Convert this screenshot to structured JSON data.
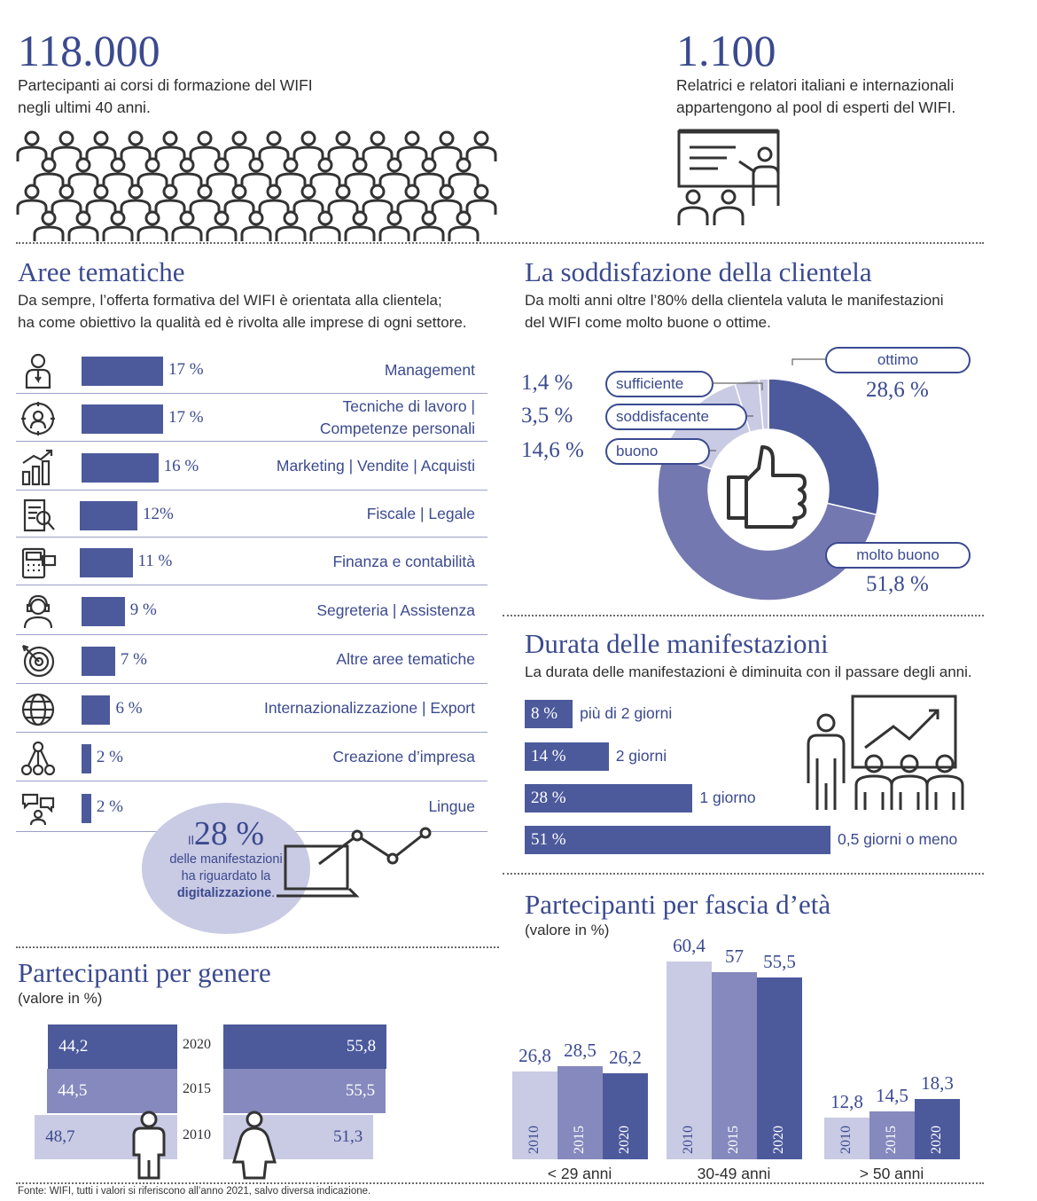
{
  "stats": {
    "participants": {
      "number": "118.000",
      "text1": "Partecipanti ai corsi di formazione del WIFI",
      "text2": "negli ultimi 40 anni."
    },
    "experts": {
      "number": "1.100",
      "text1": "Relatrici e relatori italiani e internazionali",
      "text2": "appartengono al pool di esperti del WIFI."
    }
  },
  "areas": {
    "title": "Aree tematiche",
    "sub1": "Da sempre, l’offerta formativa del WIFI è orientata alla clientela;",
    "sub2": "ha come obiettivo la qualità ed è rivolta alle imprese di ogni settore.",
    "icons": [
      "manager-icon",
      "head-gear-icon",
      "growth-chart-icon",
      "document-magnifier-icon",
      "calculator-card-icon",
      "headset-icon",
      "target-icon",
      "globe-icon",
      "network-icon",
      "speech-bubbles-icon"
    ]
  },
  "digital": {
    "prefix": "Il",
    "pct": "28 %",
    "line1": "delle manifestazioni",
    "line2": "ha riguardato la",
    "strong": "digitalizzazione",
    "suffix": "."
  },
  "satisfaction": {
    "title": "La soddisfazione della clientela",
    "sub1": "Da molti anni oltre l’80% della clientela valuta le manifestazioni",
    "sub2": "del WIFI come molto buone o ottime."
  },
  "duration": {
    "title": "Durata delle manifestazioni",
    "sub": "La durata delle manifestazioni è diminuita con il passare degli anni."
  },
  "gender": {
    "title": "Partecipanti per genere",
    "unit": "(valore in %)"
  },
  "age": {
    "title": "Partecipanti per fascia d’età",
    "unit": "(valore in %)"
  },
  "footer": "Fonte: WIFI, tutti i valori si riferiscono all’anno 2021, salvo diversa indicazione.",
  "colors": {
    "navy": "#3b4a8f",
    "bar": "#4c5a9c",
    "mid": "#8589bd",
    "light": "#c9cae3"
  },
  "chart_data": [
    {
      "type": "bar",
      "orientation": "horizontal",
      "categories": [
        "Management",
        "Tecniche di lavoro | Competenze personali",
        "Marketing | Vendite | Acquisti",
        "Fiscale | Legale",
        "Finanza e contabilità",
        "Segreteria | Assistenza",
        "Altre aree tematiche",
        "Internazionalizzazione | Export",
        "Creazione d’impresa",
        "Lingue"
      ],
      "label_lines": [
        [
          "Management"
        ],
        [
          "Tecniche di lavoro |",
          "Competenze personali"
        ],
        [
          "Marketing | Vendite | Acquisti"
        ],
        [
          "Fiscale | Legale"
        ],
        [
          "Finanza e contabilità"
        ],
        [
          "Segreteria | Assistenza"
        ],
        [
          "Altre aree tematiche"
        ],
        [
          "Internazionalizzazione | Export"
        ],
        [
          "Creazione d’impresa"
        ],
        [
          "Lingue"
        ]
      ],
      "values": [
        17,
        17,
        16,
        12,
        11,
        9,
        7,
        6,
        2,
        2
      ],
      "value_labels": [
        "17 %",
        "17 %",
        "16 %",
        "12%",
        "11 %",
        "9 %",
        "7 %",
        "6 %",
        "2 %",
        "2 %"
      ]
    },
    {
      "type": "pie",
      "donut": true,
      "categories": [
        "ottimo",
        "molto buono",
        "buono",
        "soddisfacente",
        "sufficiente"
      ],
      "values": [
        28.6,
        51.8,
        14.6,
        3.5,
        1.4
      ],
      "value_labels": [
        "28,6 %",
        "51,8 %",
        "14,6 %",
        "3,5 %",
        "1,4 %"
      ],
      "colors": [
        "#4c5a9c",
        "#7378b0",
        "#c9cae3",
        "#c9cae3",
        "#c9cae3"
      ]
    },
    {
      "type": "bar",
      "orientation": "horizontal",
      "categories": [
        "più di 2 giorni",
        "2 giorni",
        "1 giorno",
        "0,5 giorni o meno"
      ],
      "values": [
        8,
        14,
        28,
        51
      ],
      "value_labels": [
        "8 %",
        "14 %",
        "28 %",
        "51 %"
      ]
    },
    {
      "type": "bar",
      "orientation": "horizontal",
      "stacked": "diverging",
      "categories": [
        "2020",
        "2015",
        "2010"
      ],
      "series": [
        {
          "values": [
            44.2,
            44.5,
            48.7
          ],
          "value_labels": [
            "44,2",
            "44,5",
            "48,7"
          ]
        },
        {
          "values": [
            55.8,
            55.5,
            51.3
          ],
          "value_labels": [
            "55,8",
            "55,5",
            "51,3"
          ]
        }
      ],
      "colors": [
        "#4c5a9c",
        "#8589bd",
        "#c9cae3"
      ]
    },
    {
      "type": "bar",
      "categories": [
        "< 29 anni",
        "30-49 anni",
        "> 50 anni"
      ],
      "series": [
        {
          "name": "2010",
          "values": [
            26.8,
            60.4,
            12.8
          ],
          "value_labels": [
            "26,8",
            "60,4",
            "12,8"
          ]
        },
        {
          "name": "2015",
          "values": [
            28.5,
            57,
            14.5
          ],
          "value_labels": [
            "28,5",
            "57",
            "14,5"
          ]
        },
        {
          "name": "2020",
          "values": [
            26.2,
            55.5,
            18.3
          ],
          "value_labels": [
            "26,2",
            "55,5",
            "18,3"
          ]
        }
      ],
      "colors": [
        "#c9cae3",
        "#8589bd",
        "#4c5a9c"
      ]
    }
  ]
}
